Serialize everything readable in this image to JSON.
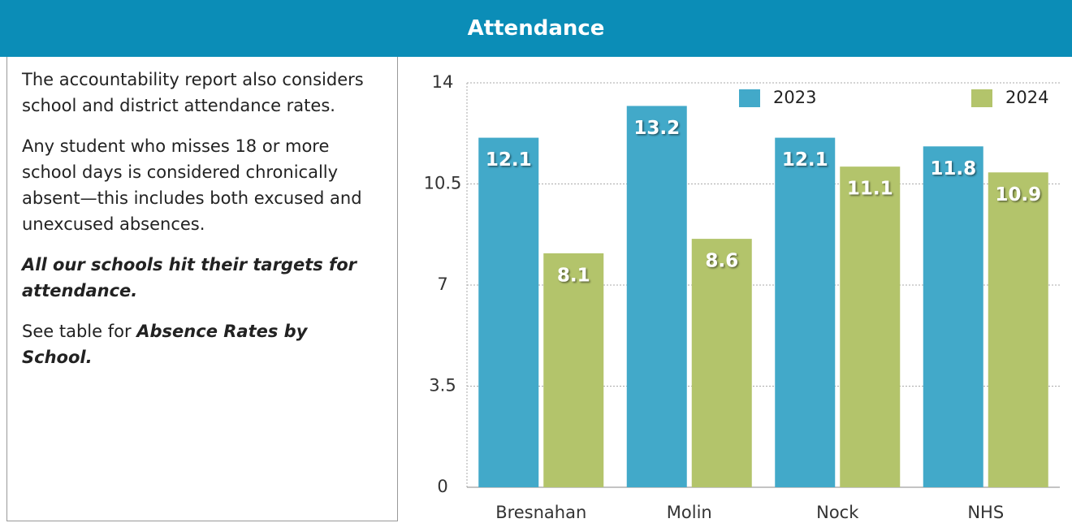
{
  "header": {
    "title": "Attendance"
  },
  "text": {
    "p1": "The accountability report also considers school and district attendance rates.",
    "p2": "Any student who misses 18 or more school days is considered chronically absent—this includes both excused and unexcused absences.",
    "p3": "All our schools hit their targets    for attendance.",
    "p4_prefix": "See table for ",
    "p4_emphasis": "Absence Rates by School."
  },
  "chart_data": {
    "type": "bar",
    "categories": [
      "Bresnahan",
      "Molin",
      "Nock",
      "NHS"
    ],
    "series": [
      {
        "name": "2023",
        "color": "#42a9c9",
        "values": [
          12.1,
          13.2,
          12.1,
          11.8
        ]
      },
      {
        "name": "2024",
        "color": "#b3c46b",
        "values": [
          8.1,
          8.6,
          11.1,
          10.9
        ]
      }
    ],
    "ylim": [
      0,
      14
    ],
    "yticks": [
      0,
      3.5,
      7,
      10.5,
      14
    ],
    "grid": true,
    "legend": "top"
  }
}
